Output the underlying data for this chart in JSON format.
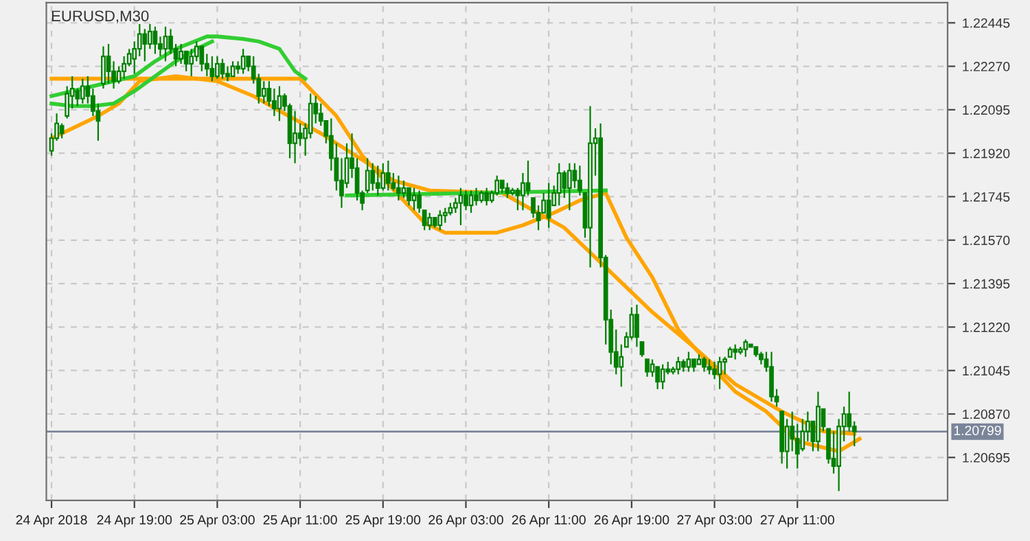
{
  "chart_data": {
    "type": "candlestick",
    "title": "EURUSD,M30",
    "color": "#008000",
    "x": [
      "2018-04-24T11:00",
      "2018-04-24T11:30",
      "2018-04-24T12:00",
      "2018-04-24T12:30",
      "2018-04-24T13:00",
      "2018-04-24T13:30",
      "2018-04-24T14:00",
      "2018-04-24T14:30",
      "2018-04-24T15:00",
      "2018-04-24T15:30",
      "2018-04-24T16:00",
      "2018-04-24T16:30",
      "2018-04-24T17:00",
      "2018-04-24T17:30",
      "2018-04-24T18:00",
      "2018-04-24T18:30",
      "2018-04-24T19:00",
      "2018-04-24T19:30",
      "2018-04-24T20:00",
      "2018-04-24T20:30",
      "2018-04-24T21:00",
      "2018-04-24T21:30",
      "2018-04-24T22:00",
      "2018-04-24T22:30",
      "2018-04-24T23:00",
      "2018-04-24T23:30",
      "2018-04-25T00:00",
      "2018-04-25T00:30",
      "2018-04-25T01:00",
      "2018-04-25T01:30",
      "2018-04-25T02:00",
      "2018-04-25T02:30",
      "2018-04-25T03:00",
      "2018-04-25T03:30",
      "2018-04-25T04:00",
      "2018-04-25T04:30",
      "2018-04-25T05:00",
      "2018-04-25T05:30",
      "2018-04-25T06:00",
      "2018-04-25T06:30",
      "2018-04-25T07:00",
      "2018-04-25T07:30",
      "2018-04-25T08:00",
      "2018-04-25T08:30",
      "2018-04-25T09:00",
      "2018-04-25T09:30",
      "2018-04-25T10:00",
      "2018-04-25T10:30",
      "2018-04-25T11:00",
      "2018-04-25T11:30",
      "2018-04-25T12:00",
      "2018-04-25T12:30",
      "2018-04-25T13:00",
      "2018-04-25T13:30",
      "2018-04-25T14:00",
      "2018-04-25T14:30",
      "2018-04-25T15:00",
      "2018-04-25T15:30",
      "2018-04-25T16:00",
      "2018-04-25T16:30",
      "2018-04-25T17:00",
      "2018-04-25T17:30",
      "2018-04-25T18:00",
      "2018-04-25T18:30",
      "2018-04-25T19:00",
      "2018-04-25T19:30",
      "2018-04-25T20:00",
      "2018-04-25T20:30",
      "2018-04-25T21:00",
      "2018-04-25T21:30",
      "2018-04-25T22:00",
      "2018-04-25T22:30",
      "2018-04-25T23:00",
      "2018-04-25T23:30",
      "2018-04-26T00:00",
      "2018-04-26T00:30",
      "2018-04-26T01:00",
      "2018-04-26T01:30",
      "2018-04-26T02:00",
      "2018-04-26T02:30",
      "2018-04-26T03:00",
      "2018-04-26T03:30",
      "2018-04-26T04:00",
      "2018-04-26T04:30",
      "2018-04-26T05:00",
      "2018-04-26T05:30",
      "2018-04-26T06:00",
      "2018-04-26T06:30",
      "2018-04-26T07:00",
      "2018-04-26T07:30",
      "2018-04-26T08:00",
      "2018-04-26T08:30",
      "2018-04-26T09:00",
      "2018-04-26T09:30",
      "2018-04-26T10:00",
      "2018-04-26T10:30",
      "2018-04-26T11:00",
      "2018-04-26T11:30",
      "2018-04-26T12:00",
      "2018-04-26T12:30",
      "2018-04-26T13:00",
      "2018-04-26T13:30",
      "2018-04-26T14:00",
      "2018-04-26T14:30",
      "2018-04-26T15:00",
      "2018-04-26T15:30",
      "2018-04-26T16:00",
      "2018-04-26T16:30",
      "2018-04-26T17:00",
      "2018-04-26T17:30",
      "2018-04-26T18:00",
      "2018-04-26T18:30",
      "2018-04-26T19:00",
      "2018-04-26T19:30",
      "2018-04-26T20:00",
      "2018-04-26T20:30",
      "2018-04-26T21:00",
      "2018-04-26T21:30",
      "2018-04-26T22:00",
      "2018-04-26T22:30",
      "2018-04-26T23:00",
      "2018-04-26T23:30",
      "2018-04-27T00:00",
      "2018-04-27T00:30",
      "2018-04-27T01:00",
      "2018-04-27T01:30",
      "2018-04-27T02:00",
      "2018-04-27T02:30",
      "2018-04-27T03:00",
      "2018-04-27T03:30",
      "2018-04-27T04:00",
      "2018-04-27T04:30",
      "2018-04-27T05:00",
      "2018-04-27T05:30",
      "2018-04-27T06:00",
      "2018-04-27T06:30",
      "2018-04-27T07:00",
      "2018-04-27T07:30",
      "2018-04-27T08:00",
      "2018-04-27T08:30",
      "2018-04-27T09:00",
      "2018-04-27T09:30",
      "2018-04-27T10:00",
      "2018-04-27T10:30",
      "2018-04-27T11:00",
      "2018-04-27T11:30",
      "2018-04-27T12:00",
      "2018-04-27T12:30",
      "2018-04-27T13:00",
      "2018-04-27T13:30",
      "2018-04-27T14:00",
      "2018-04-27T14:30",
      "2018-04-27T15:00",
      "2018-04-27T15:30",
      "2018-04-27T16:00",
      "2018-04-27T16:30"
    ],
    "ohlc": [
      [
        1.2193,
        1.22,
        1.2191,
        1.2198
      ],
      [
        1.2198,
        1.2208,
        1.2197,
        1.2204
      ],
      [
        1.2203,
        1.2204,
        1.2198,
        1.22
      ],
      [
        1.2207,
        1.2219,
        1.2206,
        1.2216
      ],
      [
        1.2215,
        1.2223,
        1.221,
        1.2218
      ],
      [
        1.2217,
        1.2218,
        1.2211,
        1.2214
      ],
      [
        1.2214,
        1.2222,
        1.2212,
        1.2219
      ],
      [
        1.2219,
        1.2223,
        1.2212,
        1.2215
      ],
      [
        1.2215,
        1.2218,
        1.2207,
        1.2209
      ],
      [
        1.2209,
        1.2212,
        1.2197,
        1.2205
      ],
      [
        1.222,
        1.2235,
        1.2218,
        1.2231
      ],
      [
        1.2231,
        1.2236,
        1.222,
        1.2225
      ],
      [
        1.2225,
        1.2229,
        1.2218,
        1.2221
      ],
      [
        1.2221,
        1.2227,
        1.222,
        1.2225
      ],
      [
        1.2225,
        1.2231,
        1.2222,
        1.2228
      ],
      [
        1.2228,
        1.2234,
        1.2227,
        1.2232
      ],
      [
        1.223,
        1.2237,
        1.2224,
        1.2234
      ],
      [
        1.2234,
        1.2244,
        1.2231,
        1.224
      ],
      [
        1.224,
        1.2242,
        1.2229,
        1.2236
      ],
      [
        1.2236,
        1.2244,
        1.2234,
        1.2241
      ],
      [
        1.2241,
        1.2243,
        1.2232,
        1.2236
      ],
      [
        1.2236,
        1.2239,
        1.2231,
        1.2234
      ],
      [
        1.2234,
        1.2243,
        1.2229,
        1.2239
      ],
      [
        1.2239,
        1.2242,
        1.2232,
        1.2234
      ],
      [
        1.2234,
        1.2236,
        1.2227,
        1.223
      ],
      [
        1.223,
        1.2236,
        1.2228,
        1.2233
      ],
      [
        1.2233,
        1.2233,
        1.2225,
        1.2228
      ],
      [
        1.2228,
        1.2234,
        1.2223,
        1.2231
      ],
      [
        1.2231,
        1.2237,
        1.2229,
        1.2235
      ],
      [
        1.2235,
        1.2235,
        1.2225,
        1.2228
      ],
      [
        1.2228,
        1.2232,
        1.2223,
        1.2226
      ],
      [
        1.2226,
        1.2231,
        1.2221,
        1.2223
      ],
      [
        1.2223,
        1.2231,
        1.2222,
        1.2228
      ],
      [
        1.2228,
        1.223,
        1.2222,
        1.2224
      ],
      [
        1.2224,
        1.2227,
        1.2221,
        1.2223
      ],
      [
        1.2223,
        1.2229,
        1.2223,
        1.2227
      ],
      [
        1.2227,
        1.2229,
        1.2224,
        1.2226
      ],
      [
        1.2226,
        1.2234,
        1.2224,
        1.2231
      ],
      [
        1.2231,
        1.2231,
        1.2225,
        1.2227
      ],
      [
        1.2227,
        1.2231,
        1.222,
        1.2222
      ],
      [
        1.2222,
        1.2224,
        1.2212,
        1.2215
      ],
      [
        1.2215,
        1.2221,
        1.2212,
        1.2218
      ],
      [
        1.2218,
        1.2221,
        1.2211,
        1.2213
      ],
      [
        1.2213,
        1.2218,
        1.2207,
        1.221
      ],
      [
        1.221,
        1.2219,
        1.2205,
        1.2215
      ],
      [
        1.2215,
        1.2216,
        1.2209,
        1.2211
      ],
      [
        1.2211,
        1.2212,
        1.219,
        1.2196
      ],
      [
        1.2196,
        1.2209,
        1.2188,
        1.22
      ],
      [
        1.22,
        1.2204,
        1.2195,
        1.2198
      ],
      [
        1.2198,
        1.2204,
        1.2191,
        1.2202
      ],
      [
        1.22,
        1.2216,
        1.2198,
        1.2212
      ],
      [
        1.2212,
        1.2215,
        1.2204,
        1.2208
      ],
      [
        1.2208,
        1.2212,
        1.2203,
        1.2205
      ],
      [
        1.2205,
        1.2205,
        1.2196,
        1.2199
      ],
      [
        1.2199,
        1.2206,
        1.2185,
        1.219
      ],
      [
        1.219,
        1.2196,
        1.2177,
        1.2181
      ],
      [
        1.2181,
        1.219,
        1.217,
        1.2175
      ],
      [
        1.218,
        1.2196,
        1.2178,
        1.219
      ],
      [
        1.219,
        1.22,
        1.2182,
        1.2186
      ],
      [
        1.2186,
        1.219,
        1.2173,
        1.2176
      ],
      [
        1.2176,
        1.2177,
        1.2169,
        1.2172
      ],
      [
        1.2177,
        1.219,
        1.2176,
        1.2185
      ],
      [
        1.2185,
        1.2188,
        1.2177,
        1.218
      ],
      [
        1.218,
        1.2187,
        1.2175,
        1.2178
      ],
      [
        1.2178,
        1.2188,
        1.2177,
        1.2184
      ],
      [
        1.2184,
        1.2189,
        1.2177,
        1.218
      ],
      [
        1.218,
        1.2184,
        1.2177,
        1.2178
      ],
      [
        1.2178,
        1.2183,
        1.2173,
        1.2176
      ],
      [
        1.2176,
        1.2181,
        1.2174,
        1.2178
      ],
      [
        1.2178,
        1.2178,
        1.2171,
        1.2173
      ],
      [
        1.2173,
        1.2178,
        1.2169,
        1.2175
      ],
      [
        1.2175,
        1.2177,
        1.2168,
        1.217
      ],
      [
        1.2169,
        1.2169,
        1.2161,
        1.2163
      ],
      [
        1.2163,
        1.2168,
        1.2161,
        1.2166
      ],
      [
        1.2166,
        1.2166,
        1.2162,
        1.2163
      ],
      [
        1.2163,
        1.2169,
        1.2161,
        1.2167
      ],
      [
        1.2167,
        1.217,
        1.2164,
        1.2168
      ],
      [
        1.2168,
        1.2172,
        1.2167,
        1.217
      ],
      [
        1.217,
        1.2174,
        1.2168,
        1.2172
      ],
      [
        1.2172,
        1.2178,
        1.2163,
        1.2175
      ],
      [
        1.2175,
        1.2177,
        1.2169,
        1.2171
      ],
      [
        1.2171,
        1.2177,
        1.2168,
        1.2175
      ],
      [
        1.2175,
        1.2178,
        1.2171,
        1.2173
      ],
      [
        1.2173,
        1.2177,
        1.2172,
        1.2176
      ],
      [
        1.2176,
        1.2178,
        1.2171,
        1.2173
      ],
      [
        1.2173,
        1.2177,
        1.2172,
        1.2176
      ],
      [
        1.2176,
        1.2183,
        1.2175,
        1.2181
      ],
      [
        1.2181,
        1.2181,
        1.2176,
        1.2178
      ],
      [
        1.2178,
        1.218,
        1.2174,
        1.2176
      ],
      [
        1.2176,
        1.2178,
        1.2175,
        1.2177
      ],
      [
        1.2177,
        1.2178,
        1.2169,
        1.2175
      ],
      [
        1.2175,
        1.2184,
        1.2169,
        1.218
      ],
      [
        1.218,
        1.2189,
        1.2175,
        1.2177
      ],
      [
        1.2174,
        1.2174,
        1.2166,
        1.2168
      ],
      [
        1.2168,
        1.2171,
        1.2161,
        1.2165
      ],
      [
        1.2168,
        1.2176,
        1.2168,
        1.2173
      ],
      [
        1.2173,
        1.218,
        1.2162,
        1.2166
      ],
      [
        1.2171,
        1.2179,
        1.2171,
        1.2176
      ],
      [
        1.2176,
        1.2188,
        1.2171,
        1.2184
      ],
      [
        1.2184,
        1.2185,
        1.2174,
        1.2178
      ],
      [
        1.2178,
        1.2188,
        1.2169,
        1.2185
      ],
      [
        1.2185,
        1.2188,
        1.2178,
        1.2181
      ],
      [
        1.2181,
        1.2187,
        1.2175,
        1.2177
      ],
      [
        1.2176,
        1.2176,
        1.2158,
        1.2162
      ],
      [
        1.2162,
        1.2211,
        1.2146,
        1.2196
      ],
      [
        1.2196,
        1.2202,
        1.2183,
        1.2198
      ],
      [
        1.2198,
        1.2204,
        1.2146,
        1.215
      ],
      [
        1.215,
        1.2151,
        1.2115,
        1.2125
      ],
      [
        1.2125,
        1.2129,
        1.2107,
        1.2112
      ],
      [
        1.2112,
        1.2121,
        1.2103,
        1.2106
      ],
      [
        1.2106,
        1.2115,
        1.2098,
        1.211
      ],
      [
        1.2114,
        1.212,
        1.2114,
        1.2118
      ],
      [
        1.2118,
        1.213,
        1.2117,
        1.2127
      ],
      [
        1.2127,
        1.2131,
        1.2114,
        1.2118
      ],
      [
        1.2116,
        1.2116,
        1.211,
        1.2111
      ],
      [
        1.2109,
        1.2109,
        1.2102,
        1.2104
      ],
      [
        1.2104,
        1.2109,
        1.2102,
        1.2107
      ],
      [
        1.2106,
        1.2106,
        1.2097,
        1.21
      ],
      [
        1.21,
        1.2107,
        1.2097,
        1.2105
      ],
      [
        1.2105,
        1.2108,
        1.2103,
        1.2104
      ],
      [
        1.2104,
        1.2106,
        1.2103,
        1.2105
      ],
      [
        1.2105,
        1.211,
        1.2103,
        1.2108
      ],
      [
        1.2108,
        1.2109,
        1.2104,
        1.2106
      ],
      [
        1.2106,
        1.2112,
        1.2104,
        1.2109
      ],
      [
        1.2109,
        1.2109,
        1.2104,
        1.2106
      ],
      [
        1.2107,
        1.2111,
        1.2107,
        1.2109
      ],
      [
        1.2109,
        1.211,
        1.2104,
        1.2106
      ],
      [
        1.2106,
        1.2109,
        1.2103,
        1.2105
      ],
      [
        1.2105,
        1.2108,
        1.2101,
        1.2103
      ],
      [
        1.2103,
        1.211,
        1.2097,
        1.2108
      ],
      [
        1.2108,
        1.211,
        1.2103,
        1.2109
      ],
      [
        1.211,
        1.2114,
        1.211,
        1.2113
      ],
      [
        1.2113,
        1.2115,
        1.2109,
        1.2112
      ],
      [
        1.2112,
        1.2114,
        1.2111,
        1.2113
      ],
      [
        1.2113,
        1.2117,
        1.211,
        1.2116
      ],
      [
        1.2115,
        1.2115,
        1.2114,
        1.2114
      ],
      [
        1.2114,
        1.2114,
        1.211,
        1.2111
      ],
      [
        1.2111,
        1.2112,
        1.2107,
        1.2109
      ],
      [
        1.2109,
        1.2112,
        1.2104,
        1.2106
      ],
      [
        1.2106,
        1.2112,
        1.2092,
        1.2094
      ],
      [
        1.2094,
        1.2097,
        1.209,
        1.2092
      ],
      [
        1.2088,
        1.2088,
        1.2067,
        1.2072
      ],
      [
        1.2072,
        1.2085,
        1.2065,
        1.2082
      ],
      [
        1.2082,
        1.2088,
        1.2072,
        1.2077
      ],
      [
        1.2077,
        1.2083,
        1.2065,
        1.2071
      ],
      [
        1.2073,
        1.2085,
        1.2072,
        1.208
      ],
      [
        1.208,
        1.2088,
        1.2076,
        1.2084
      ],
      [
        1.2084,
        1.2084,
        1.2072,
        1.2076
      ],
      [
        1.2076,
        1.2096,
        1.2072,
        1.209
      ],
      [
        1.2089,
        1.2089,
        1.208,
        1.2082
      ],
      [
        1.2081,
        1.2081,
        1.2067,
        1.2069
      ],
      [
        1.2069,
        1.208,
        1.2063,
        1.2066
      ],
      [
        1.2066,
        1.2085,
        1.2056,
        1.2082
      ],
      [
        1.2082,
        1.209,
        1.2076,
        1.2087
      ],
      [
        1.2087,
        1.2096,
        1.208,
        1.2082
      ],
      [
        1.2082,
        1.2084,
        1.2074,
        1.208
      ]
    ],
    "series": [
      {
        "type": "line",
        "color": "#ffa500",
        "x": [
          "2018-04-24T11:00",
          "2018-04-24T23:00",
          "2018-04-25T11:00",
          "2018-04-25T14:30",
          "2018-04-25T17:00",
          "2018-04-25T18:30",
          "2018-04-25T23:00",
          "2018-04-26T01:00",
          "2018-04-26T06:00",
          "2018-04-26T08:30",
          "2018-04-26T11:30",
          "2018-04-26T14:00",
          "2018-04-26T16:30",
          "2018-04-26T18:30",
          "2018-04-26T21:00",
          "2018-04-26T23:30",
          "2018-04-27T02:30",
          "2018-04-27T05:00",
          "2018-04-27T08:00",
          "2018-04-27T11:00",
          "2018-04-27T15:00",
          "2018-04-27T17:00"
        ],
        "values": [
          1.2222,
          1.2222,
          1.2222,
          1.2207,
          1.2191,
          1.2184,
          1.2164,
          1.216,
          1.216,
          1.2163,
          1.2168,
          1.2173,
          1.2176,
          1.2158,
          1.2142,
          1.2121,
          1.2107,
          1.2096,
          1.2088,
          1.2076,
          1.2072,
          1.2077
        ]
      },
      {
        "type": "line",
        "color": "#ffa500",
        "x": [
          "2018-04-24T11:00",
          "2018-04-24T15:30",
          "2018-04-24T17:30",
          "2018-04-24T19:30",
          "2018-04-24T23:00",
          "2018-04-25T03:00",
          "2018-04-25T06:30",
          "2018-04-25T09:00",
          "2018-04-25T13:00",
          "2018-04-25T17:30",
          "2018-04-25T20:00",
          "2018-04-25T23:30",
          "2018-04-26T06:30",
          "2018-04-26T12:30",
          "2018-04-26T16:30",
          "2018-04-26T21:00",
          "2018-04-27T01:00",
          "2018-04-27T05:00",
          "2018-04-27T09:30",
          "2018-04-27T13:30",
          "2018-04-27T16:30"
        ],
        "values": [
          1.2198,
          1.2207,
          1.2212,
          1.2221,
          1.2223,
          1.2221,
          1.2215,
          1.2209,
          1.22,
          1.2188,
          1.2181,
          1.2177,
          1.2176,
          1.2162,
          1.2146,
          1.2128,
          1.2114,
          1.2099,
          1.2088,
          1.208,
          1.2079
        ]
      },
      {
        "type": "line",
        "color": "#32cd32",
        "x": [
          "2018-04-24T11:00",
          "2018-04-24T13:00",
          "2018-04-24T17:00",
          "2018-04-24T19:00",
          "2018-04-24T21:00",
          "2018-04-24T23:00",
          "2018-04-25T02:00",
          "2018-04-25T03:00",
          "2018-04-25T05:30",
          "2018-04-25T07:00",
          "2018-04-25T09:00",
          "2018-04-25T10:30",
          "2018-04-25T11:30"
        ],
        "values": [
          1.2215,
          1.2217,
          1.2221,
          1.2223,
          1.2229,
          1.2234,
          1.2239,
          1.2239,
          1.2238,
          1.2237,
          1.2234,
          1.2225,
          1.2222
        ]
      },
      {
        "type": "line",
        "color": "#32cd32",
        "x": [
          "2018-04-24T11:00",
          "2018-04-24T13:00",
          "2018-04-24T15:00",
          "2018-04-24T17:00",
          "2018-04-24T19:00",
          "2018-04-24T21:00",
          "2018-04-24T23:00",
          "2018-04-25T01:00",
          "2018-04-25T02:30"
        ],
        "values": [
          1.2212,
          1.2211,
          1.2211,
          1.2212,
          1.2217,
          1.2223,
          1.2229,
          1.2234,
          1.2237
        ]
      },
      {
        "type": "line",
        "color": "#32cd32",
        "x": [
          "2018-04-25T15:30",
          "2018-04-26T16:30"
        ],
        "values": [
          1.2175,
          1.2177
        ]
      }
    ],
    "xlim": [
      "2018-04-24T10:30",
      "2018-04-28T01:30"
    ],
    "xticks": [
      {
        "value": "2018-04-24T11:00",
        "label": "24 Apr 2018"
      },
      {
        "value": "2018-04-24T19:00",
        "label": "24 Apr 19:00"
      },
      {
        "value": "2018-04-25T03:00",
        "label": "25 Apr 03:00"
      },
      {
        "value": "2018-04-25T11:00",
        "label": "25 Apr 11:00"
      },
      {
        "value": "2018-04-25T19:00",
        "label": "25 Apr 19:00"
      },
      {
        "value": "2018-04-26T03:00",
        "label": "26 Apr 03:00"
      },
      {
        "value": "2018-04-26T11:00",
        "label": "26 Apr 11:00"
      },
      {
        "value": "2018-04-26T19:00",
        "label": "26 Apr 19:00"
      },
      {
        "value": "2018-04-27T03:00",
        "label": "27 Apr 03:00"
      },
      {
        "value": "2018-04-27T11:00",
        "label": "27 Apr 11:00"
      }
    ],
    "ylim": [
      1.20522,
      1.22526
    ],
    "yticks": [
      {
        "value": 1.20695,
        "label": "1.20695"
      },
      {
        "value": 1.2087,
        "label": "1.20870"
      },
      {
        "value": 1.21045,
        "label": "1.21045"
      },
      {
        "value": 1.2122,
        "label": "1.21220"
      },
      {
        "value": 1.21395,
        "label": "1.21395"
      },
      {
        "value": 1.2157,
        "label": "1.21570"
      },
      {
        "value": 1.21745,
        "label": "1.21745"
      },
      {
        "value": 1.2192,
        "label": "1.21920"
      },
      {
        "value": 1.22095,
        "label": "1.22095"
      },
      {
        "value": 1.2227,
        "label": "1.22270"
      },
      {
        "value": 1.22445,
        "label": "1.22445"
      }
    ],
    "ref_lines": [
      {
        "axis": "y",
        "value": 1.20799,
        "label": "1.20799",
        "color": "#7a8599"
      }
    ],
    "grid": true
  }
}
